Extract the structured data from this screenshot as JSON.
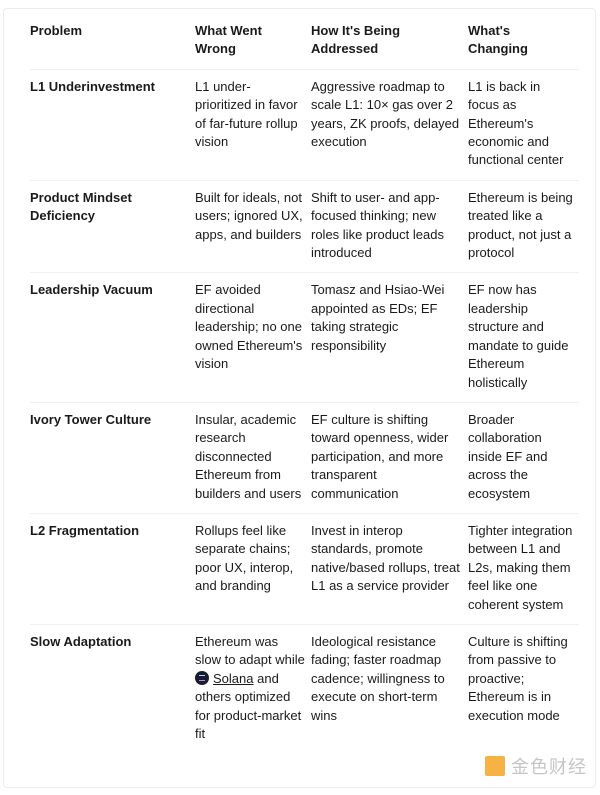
{
  "headers": [
    "Problem",
    "What Went Wrong",
    "How It's Being Addressed",
    "What's Changing"
  ],
  "rows": [
    {
      "problem": "L1 Underinvestment",
      "wrong": "L1 under-prioritized in favor of far-future rollup vision",
      "addressed": "Aggressive roadmap to scale L1: 10× gas over 2 years, ZK proofs, delayed execution",
      "changing": "L1 is back in focus as Ethereum's economic and functional center"
    },
    {
      "problem": "Product Mindset Deficiency",
      "wrong": "Built for ideals, not users; ignored UX, apps, and builders",
      "addressed": "Shift to user- and app-focused thinking; new roles like product leads introduced",
      "changing": "Ethereum is being treated like a product, not just a protocol"
    },
    {
      "problem": "Leadership Vacuum",
      "wrong": "EF avoided directional leadership; no one owned Ethereum's vision",
      "addressed": "Tomasz and Hsiao-Wei appointed as EDs; EF taking strategic responsibility",
      "changing": "EF now has leadership structure and mandate to guide Ethereum holistically"
    },
    {
      "problem": "Ivory Tower Culture",
      "wrong": "Insular, academic research disconnected Ethereum from builders and users",
      "addressed": "EF culture is shifting toward openness, wider participation, and more transparent communication",
      "changing": "Broader collaboration inside EF and across the ecosystem"
    },
    {
      "problem": "L2 Fragmentation",
      "wrong": "Rollups feel like separate chains; poor UX, interop, and branding",
      "addressed": "Invest in interop standards, promote native/based rollups, treat L1 as a service provider",
      "changing": "Tighter integration between L1 and L2s, making them feel like one coherent system"
    },
    {
      "problem": "Slow Adaptation",
      "wrong_pre": "Ethereum was slow to adapt while",
      "wrong_link": "Solana",
      "wrong_post": "and others optimized for product-market fit",
      "addressed": "Ideological resistance fading; faster roadmap cadence; willingness to execute on short-term wins",
      "changing": "Culture is shifting from passive to proactive; Ethereum is in execution mode"
    }
  ],
  "solana_icon": "solana-logo-icon",
  "watermark": "金色财经"
}
